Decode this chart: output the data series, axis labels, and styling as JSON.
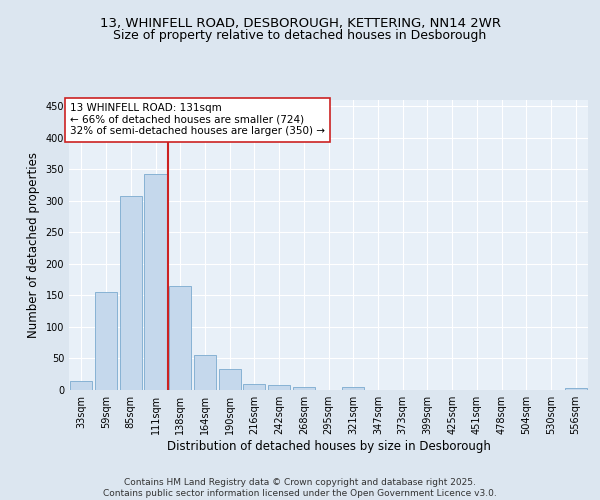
{
  "title_line1": "13, WHINFELL ROAD, DESBOROUGH, KETTERING, NN14 2WR",
  "title_line2": "Size of property relative to detached houses in Desborough",
  "xlabel": "Distribution of detached houses by size in Desborough",
  "ylabel": "Number of detached properties",
  "categories": [
    "33sqm",
    "59sqm",
    "85sqm",
    "111sqm",
    "138sqm",
    "164sqm",
    "190sqm",
    "216sqm",
    "242sqm",
    "268sqm",
    "295sqm",
    "321sqm",
    "347sqm",
    "373sqm",
    "399sqm",
    "425sqm",
    "451sqm",
    "478sqm",
    "504sqm",
    "530sqm",
    "556sqm"
  ],
  "values": [
    15,
    155,
    308,
    342,
    165,
    55,
    33,
    10,
    8,
    5,
    0,
    5,
    0,
    0,
    0,
    0,
    0,
    0,
    0,
    0,
    3
  ],
  "bar_color": "#c5d8ec",
  "bar_edge_color": "#7aaacf",
  "vline_color": "#cc2222",
  "vline_x_index": 3.5,
  "annotation_text": "13 WHINFELL ROAD: 131sqm\n← 66% of detached houses are smaller (724)\n32% of semi-detached houses are larger (350) →",
  "annotation_box_facecolor": "#ffffff",
  "annotation_box_edgecolor": "#cc2222",
  "ylim": [
    0,
    460
  ],
  "yticks": [
    0,
    50,
    100,
    150,
    200,
    250,
    300,
    350,
    400,
    450
  ],
  "footer_text": "Contains HM Land Registry data © Crown copyright and database right 2025.\nContains public sector information licensed under the Open Government Licence v3.0.",
  "bg_color": "#dce6f0",
  "plot_bg_color": "#e8f0f8",
  "grid_color": "#ffffff",
  "title_fontsize": 9.5,
  "subtitle_fontsize": 9,
  "axis_label_fontsize": 8.5,
  "tick_fontsize": 7,
  "annotation_fontsize": 7.5,
  "footer_fontsize": 6.5
}
